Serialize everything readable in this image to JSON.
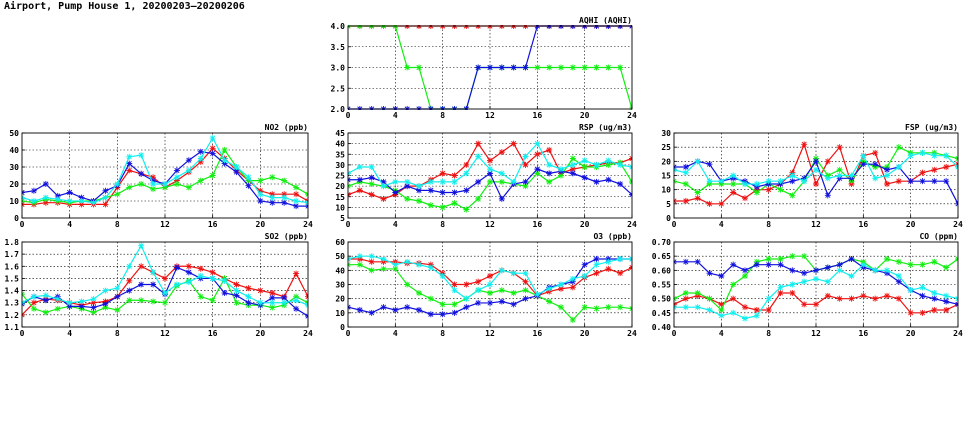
{
  "page": {
    "title": "Airport, Pump House 1, 20200203–20200206"
  },
  "colors": {
    "red": "#ee1111",
    "green": "#11ee11",
    "blue": "#1111dd",
    "cyan": "#11eeee"
  },
  "chart_data": [
    {
      "id": "aqhi",
      "type": "line",
      "title": "AQHI (AQHI)",
      "xlim": [
        0,
        24
      ],
      "xticks": [
        0,
        4,
        8,
        12,
        16,
        20,
        24
      ],
      "ylim": [
        2.0,
        4.0
      ],
      "yticks": [
        "2.0",
        "2.5",
        "3.0",
        "3.5",
        "4.0"
      ],
      "grid": true,
      "x": [
        0,
        1,
        2,
        3,
        4,
        5,
        6,
        7,
        8,
        9,
        10,
        11,
        12,
        13,
        14,
        15,
        16,
        17,
        18,
        19,
        20,
        21,
        22,
        23,
        24
      ],
      "series": [
        {
          "color": "red",
          "values": [
            4,
            4,
            4,
            4,
            4,
            4,
            4,
            4,
            4,
            4,
            4,
            4,
            4,
            4,
            4,
            4,
            4,
            4,
            4,
            4,
            4,
            4,
            4,
            4,
            4
          ]
        },
        {
          "color": "green",
          "values": [
            4,
            4,
            4,
            4,
            4,
            3,
            3,
            2,
            2,
            2,
            2,
            3,
            3,
            3,
            3,
            3,
            3,
            3,
            3,
            3,
            3,
            3,
            3,
            3,
            2
          ]
        },
        {
          "color": "blue",
          "values": [
            2,
            2,
            2,
            2,
            2,
            2,
            2,
            2,
            2,
            2,
            2,
            3,
            3,
            3,
            3,
            3,
            4,
            4,
            4,
            4,
            4,
            4,
            4,
            4,
            4
          ]
        }
      ]
    },
    {
      "id": "no2",
      "type": "line",
      "title": "NO2 (ppb)",
      "xlim": [
        0,
        24
      ],
      "xticks": [
        0,
        4,
        8,
        12,
        16,
        20,
        24
      ],
      "ylim": [
        0,
        50
      ],
      "yticks": [
        "0",
        "10",
        "20",
        "30",
        "40",
        "50"
      ],
      "grid": true,
      "x": [
        0,
        1,
        2,
        3,
        4,
        5,
        6,
        7,
        8,
        9,
        10,
        11,
        12,
        13,
        14,
        15,
        16,
        17,
        18,
        19,
        20,
        21,
        22,
        23,
        24
      ],
      "series": [
        {
          "color": "red",
          "values": [
            8,
            8,
            9,
            9,
            8,
            8,
            8,
            8,
            18,
            28,
            26,
            24,
            18,
            22,
            27,
            33,
            41,
            35,
            28,
            22,
            16,
            14,
            14,
            14,
            10
          ]
        },
        {
          "color": "green",
          "values": [
            10,
            9,
            11,
            10,
            9,
            10,
            10,
            12,
            14,
            18,
            20,
            17,
            18,
            20,
            18,
            22,
            25,
            40,
            30,
            22,
            22,
            24,
            22,
            18,
            14
          ]
        },
        {
          "color": "blue",
          "values": [
            15,
            16,
            20,
            13,
            15,
            12,
            10,
            16,
            19,
            32,
            26,
            22,
            20,
            28,
            34,
            39,
            38,
            32,
            27,
            19,
            10,
            9,
            9,
            7,
            7
          ]
        },
        {
          "color": "cyan",
          "values": [
            12,
            10,
            12,
            11,
            10,
            10,
            9,
            12,
            20,
            36,
            37,
            20,
            20,
            24,
            28,
            35,
            47,
            34,
            30,
            24,
            14,
            12,
            12,
            10,
            9
          ]
        }
      ]
    },
    {
      "id": "rsp",
      "type": "line",
      "title": "RSP (ug/m3)",
      "xlim": [
        0,
        24
      ],
      "xticks": [
        0,
        4,
        8,
        12,
        16,
        20,
        24
      ],
      "ylim": [
        5,
        45
      ],
      "yticks": [
        "5",
        "10",
        "15",
        "20",
        "25",
        "30",
        "35",
        "40",
        "45"
      ],
      "grid": true,
      "x": [
        0,
        1,
        2,
        3,
        4,
        5,
        6,
        7,
        8,
        9,
        10,
        11,
        12,
        13,
        14,
        15,
        16,
        17,
        18,
        19,
        20,
        21,
        22,
        23,
        24
      ],
      "series": [
        {
          "color": "red",
          "values": [
            16,
            18,
            16,
            14,
            16,
            20,
            20,
            23,
            26,
            25,
            30,
            40,
            32,
            36,
            40,
            30,
            35,
            37,
            26,
            28,
            29,
            30,
            31,
            31,
            33
          ]
        },
        {
          "color": "green",
          "values": [
            20,
            22,
            21,
            20,
            18,
            14,
            13,
            11,
            10,
            12,
            9,
            14,
            22,
            22,
            21,
            20,
            26,
            22,
            25,
            33,
            29,
            29,
            30,
            31,
            22
          ]
        },
        {
          "color": "blue",
          "values": [
            23,
            23,
            24,
            22,
            17,
            20,
            18,
            18,
            17,
            17,
            18,
            22,
            26,
            14,
            21,
            22,
            28,
            26,
            27,
            26,
            24,
            22,
            23,
            21,
            16
          ]
        },
        {
          "color": "cyan",
          "values": [
            26,
            29,
            29,
            20,
            22,
            22,
            20,
            22,
            22,
            22,
            26,
            34,
            28,
            26,
            22,
            34,
            40,
            30,
            28,
            30,
            32,
            30,
            32,
            30,
            29
          ]
        }
      ]
    },
    {
      "id": "fsp",
      "type": "line",
      "title": "FSP (ug/m3)",
      "xlim": [
        0,
        24
      ],
      "xticks": [
        0,
        4,
        8,
        12,
        16,
        20,
        24
      ],
      "ylim": [
        0,
        30
      ],
      "yticks": [
        "0",
        "5",
        "10",
        "15",
        "20",
        "25",
        "30"
      ],
      "grid": true,
      "x": [
        0,
        1,
        2,
        3,
        4,
        5,
        6,
        7,
        8,
        9,
        10,
        11,
        12,
        13,
        14,
        15,
        16,
        17,
        18,
        19,
        20,
        21,
        22,
        23,
        24
      ],
      "series": [
        {
          "color": "red",
          "values": [
            6,
            6,
            7,
            5,
            5,
            9,
            7,
            10,
            10,
            12,
            16,
            26,
            12,
            20,
            25,
            12,
            22,
            23,
            12,
            13,
            13,
            16,
            17,
            18,
            19
          ]
        },
        {
          "color": "green",
          "values": [
            13,
            12,
            9,
            12,
            12,
            12,
            12,
            9,
            12,
            10,
            8,
            13,
            21,
            15,
            17,
            13,
            20,
            18,
            18,
            25,
            23,
            23,
            23,
            22,
            21
          ]
        },
        {
          "color": "blue",
          "values": [
            18,
            18,
            20,
            19,
            13,
            14,
            13,
            11,
            12,
            12,
            13,
            14,
            20,
            8,
            14,
            14,
            19,
            19,
            17,
            18,
            13,
            13,
            13,
            13,
            5
          ]
        },
        {
          "color": "cyan",
          "values": [
            17,
            16,
            20,
            13,
            13,
            15,
            12,
            12,
            13,
            13,
            15,
            13,
            17,
            14,
            15,
            15,
            22,
            14,
            15,
            18,
            22,
            23,
            22,
            22,
            18
          ]
        }
      ]
    },
    {
      "id": "so2",
      "type": "line",
      "title": "SO2 (ppb)",
      "xlim": [
        0,
        24
      ],
      "xticks": [
        0,
        4,
        8,
        12,
        16,
        20,
        24
      ],
      "ylim": [
        1.1,
        1.8
      ],
      "yticks": [
        "1.1",
        "1.2",
        "1.3",
        "1.4",
        "1.5",
        "1.6",
        "1.7",
        "1.8"
      ],
      "grid": true,
      "x": [
        0,
        1,
        2,
        3,
        4,
        5,
        6,
        7,
        8,
        9,
        10,
        11,
        12,
        13,
        14,
        15,
        16,
        17,
        18,
        19,
        20,
        21,
        22,
        23,
        24
      ],
      "series": [
        {
          "color": "red",
          "values": [
            1.2,
            1.3,
            1.33,
            1.32,
            1.3,
            1.28,
            1.3,
            1.31,
            1.35,
            1.48,
            1.6,
            1.55,
            1.5,
            1.6,
            1.6,
            1.58,
            1.55,
            1.5,
            1.45,
            1.42,
            1.4,
            1.38,
            1.35,
            1.54,
            1.35
          ]
        },
        {
          "color": "green",
          "values": [
            1.37,
            1.25,
            1.22,
            1.25,
            1.27,
            1.25,
            1.22,
            1.26,
            1.24,
            1.32,
            1.32,
            1.31,
            1.3,
            1.44,
            1.48,
            1.35,
            1.32,
            1.5,
            1.3,
            1.28,
            1.28,
            1.26,
            1.28,
            1.35,
            1.3
          ]
        },
        {
          "color": "blue",
          "values": [
            1.29,
            1.35,
            1.32,
            1.35,
            1.27,
            1.27,
            1.26,
            1.29,
            1.35,
            1.4,
            1.45,
            1.45,
            1.37,
            1.59,
            1.55,
            1.5,
            1.5,
            1.38,
            1.36,
            1.3,
            1.28,
            1.34,
            1.34,
            1.25,
            1.19
          ]
        },
        {
          "color": "cyan",
          "values": [
            1.3,
            1.35,
            1.36,
            1.33,
            1.3,
            1.31,
            1.33,
            1.4,
            1.42,
            1.6,
            1.77,
            1.55,
            1.38,
            1.45,
            1.47,
            1.52,
            1.5,
            1.48,
            1.4,
            1.35,
            1.3,
            1.3,
            1.3,
            1.32,
            1.28
          ]
        }
      ]
    },
    {
      "id": "o3",
      "type": "line",
      "title": "O3 (ppb)",
      "xlim": [
        0,
        24
      ],
      "xticks": [
        0,
        4,
        8,
        12,
        16,
        20,
        24
      ],
      "ylim": [
        0,
        60
      ],
      "yticks": [
        "0",
        "10",
        "20",
        "30",
        "40",
        "50",
        "60"
      ],
      "grid": true,
      "x": [
        0,
        1,
        2,
        3,
        4,
        5,
        6,
        7,
        8,
        9,
        10,
        11,
        12,
        13,
        14,
        15,
        16,
        17,
        18,
        19,
        20,
        21,
        22,
        23,
        24
      ],
      "series": [
        {
          "color": "red",
          "values": [
            48,
            48,
            46,
            46,
            46,
            45,
            45,
            44,
            38,
            30,
            30,
            32,
            36,
            40,
            38,
            32,
            22,
            25,
            27,
            28,
            35,
            38,
            41,
            38,
            42
          ]
        },
        {
          "color": "green",
          "values": [
            44,
            44,
            40,
            41,
            41,
            30,
            24,
            20,
            16,
            16,
            20,
            26,
            24,
            26,
            24,
            26,
            22,
            18,
            14,
            5,
            14,
            13,
            14,
            14,
            13
          ]
        },
        {
          "color": "blue",
          "values": [
            14,
            12,
            10,
            14,
            12,
            14,
            12,
            9,
            9,
            10,
            14,
            17,
            17,
            18,
            16,
            20,
            22,
            28,
            30,
            32,
            44,
            48,
            48,
            48,
            48
          ]
        },
        {
          "color": "cyan",
          "values": [
            48,
            50,
            50,
            48,
            44,
            46,
            44,
            42,
            36,
            26,
            20,
            26,
            30,
            40,
            38,
            38,
            23,
            27,
            30,
            34,
            36,
            44,
            46,
            48,
            48
          ]
        }
      ]
    },
    {
      "id": "co",
      "type": "line",
      "title": "CO (ppm)",
      "xlim": [
        0,
        24
      ],
      "xticks": [
        0,
        4,
        8,
        12,
        16,
        20,
        24
      ],
      "ylim": [
        0.4,
        0.7
      ],
      "yticks": [
        "0.40",
        "0.45",
        "0.50",
        "0.55",
        "0.60",
        "0.65",
        "0.70"
      ],
      "grid": true,
      "x": [
        0,
        1,
        2,
        3,
        4,
        5,
        6,
        7,
        8,
        9,
        10,
        11,
        12,
        13,
        14,
        15,
        16,
        17,
        18,
        19,
        20,
        21,
        22,
        23,
        24
      ],
      "series": [
        {
          "color": "red",
          "values": [
            0.48,
            0.5,
            0.51,
            0.5,
            0.48,
            0.5,
            0.47,
            0.46,
            0.46,
            0.52,
            0.52,
            0.48,
            0.48,
            0.51,
            0.5,
            0.5,
            0.51,
            0.5,
            0.51,
            0.5,
            0.45,
            0.45,
            0.46,
            0.46,
            0.48
          ]
        },
        {
          "color": "green",
          "values": [
            0.5,
            0.52,
            0.52,
            0.5,
            0.46,
            0.55,
            0.58,
            0.63,
            0.64,
            0.64,
            0.65,
            0.65,
            0.6,
            0.61,
            0.62,
            0.64,
            0.63,
            0.6,
            0.64,
            0.63,
            0.62,
            0.62,
            0.63,
            0.61,
            0.64
          ]
        },
        {
          "color": "blue",
          "values": [
            0.63,
            0.63,
            0.63,
            0.59,
            0.58,
            0.62,
            0.6,
            0.62,
            0.62,
            0.62,
            0.6,
            0.59,
            0.6,
            0.61,
            0.62,
            0.64,
            0.61,
            0.6,
            0.59,
            0.56,
            0.53,
            0.51,
            0.5,
            0.49,
            0.48
          ]
        },
        {
          "color": "cyan",
          "values": [
            0.47,
            0.47,
            0.47,
            0.46,
            0.44,
            0.45,
            0.43,
            0.44,
            0.5,
            0.54,
            0.55,
            0.56,
            0.57,
            0.56,
            0.6,
            0.58,
            0.62,
            0.6,
            0.6,
            0.58,
            0.53,
            0.54,
            0.52,
            0.51,
            0.5
          ]
        }
      ]
    }
  ]
}
